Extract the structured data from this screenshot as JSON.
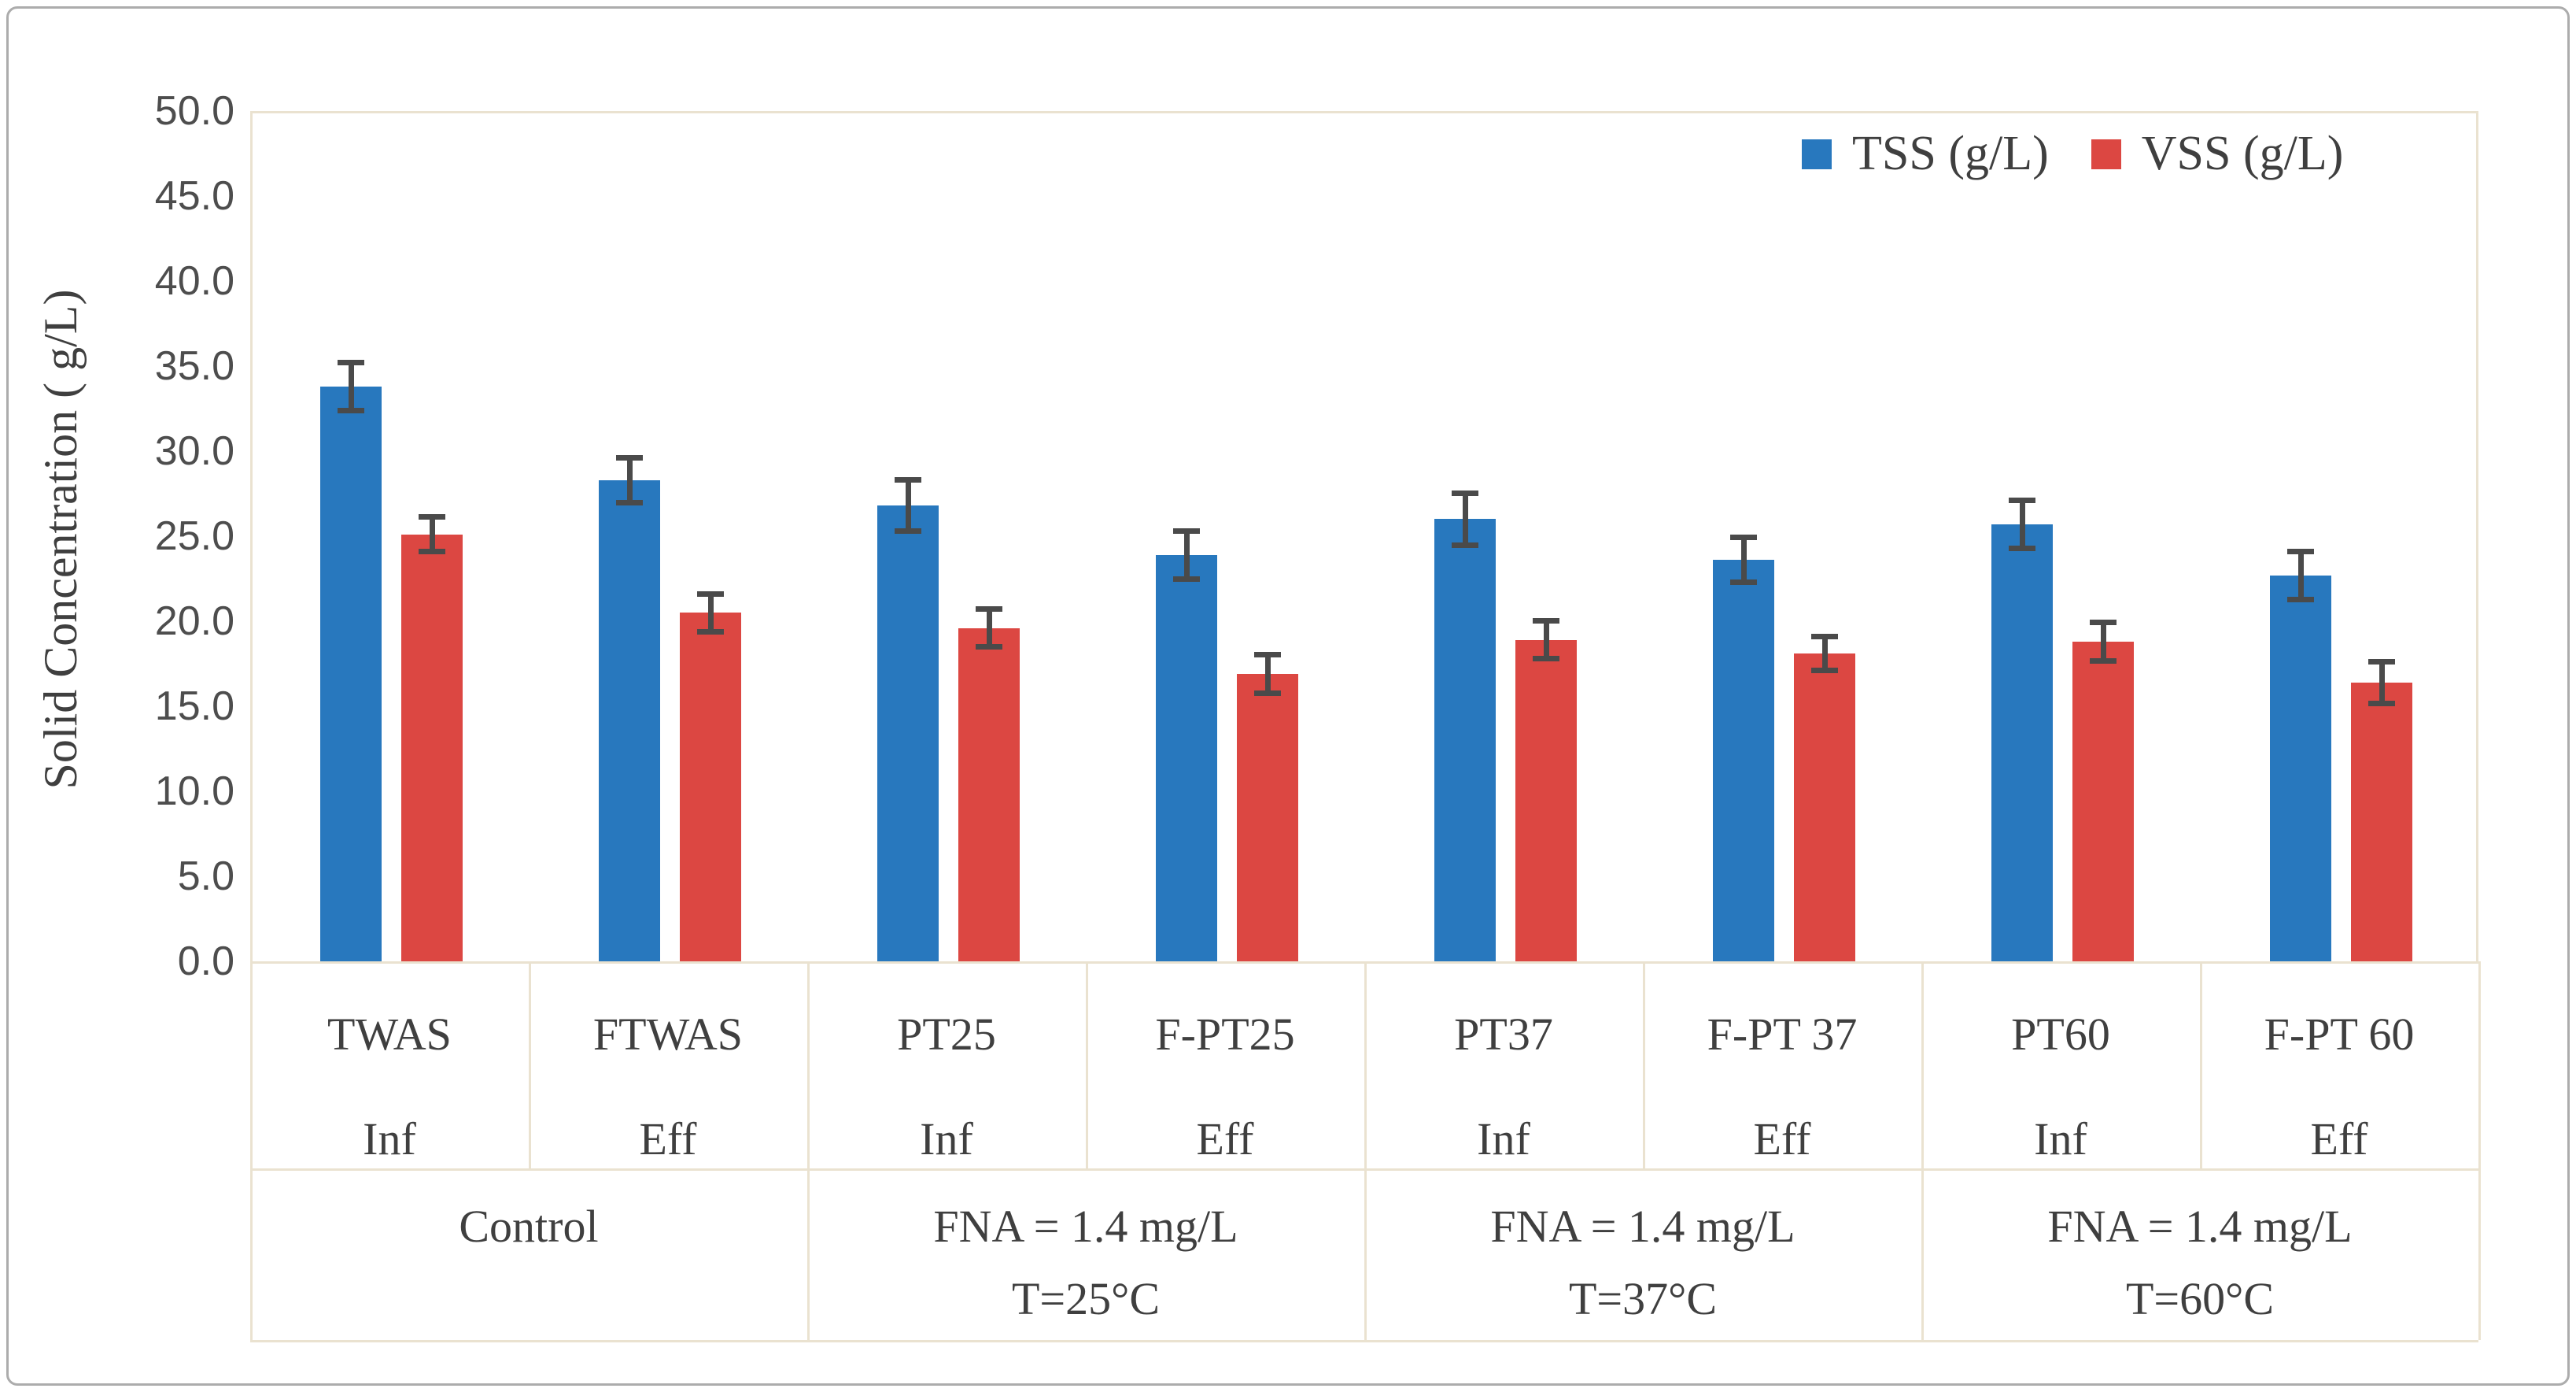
{
  "figure": {
    "border_color": "#acacac",
    "background": "#ffffff",
    "axis_line_color": "#eae2d0",
    "error_bar_color": "#4a4a4a",
    "text_color": "#3f3f3f"
  },
  "y_axis": {
    "title": "Solid Concentration ( g/L)",
    "ticks": [
      "50.0",
      "45.0",
      "40.0",
      "35.0",
      "30.0",
      "25.0",
      "20.0",
      "15.0",
      "10.0",
      "5.0",
      "0.0"
    ],
    "max": 50,
    "min": 0,
    "step": 5
  },
  "chart_data": {
    "type": "bar",
    "title": "",
    "ylabel": "Solid Concentration ( g/L)",
    "ylim": [
      0,
      50
    ],
    "grid": false,
    "legend_position": "top-right-inside",
    "categories": [
      {
        "sample": "TWAS",
        "flow": "Inf"
      },
      {
        "sample": "FTWAS",
        "flow": "Eff"
      },
      {
        "sample": "PT25",
        "flow": "Inf"
      },
      {
        "sample": "F-PT25",
        "flow": "Eff"
      },
      {
        "sample": "PT37",
        "flow": "Inf"
      },
      {
        "sample": "F-PT 37",
        "flow": "Eff"
      },
      {
        "sample": "PT60",
        "flow": "Inf"
      },
      {
        "sample": "F-PT 60",
        "flow": "Eff"
      }
    ],
    "condition_groups": [
      {
        "lines": [
          "Control"
        ],
        "span": 2
      },
      {
        "lines": [
          "FNA = 1.4 mg/L",
          "T=25°C"
        ],
        "span": 2
      },
      {
        "lines": [
          "FNA = 1.4 mg/L",
          "T=37°C"
        ],
        "span": 2
      },
      {
        "lines": [
          "FNA = 1.4 mg/L",
          "T=60°C"
        ],
        "span": 2
      }
    ],
    "series": [
      {
        "name": "TSS (g/L)",
        "color": "#2878be",
        "values": [
          33.8,
          28.3,
          26.8,
          23.9,
          26.0,
          23.6,
          25.7,
          22.7
        ],
        "errors": [
          1.3,
          1.2,
          1.4,
          1.3,
          1.4,
          1.2,
          1.3,
          1.3
        ]
      },
      {
        "name": "VSS (g/L)",
        "color": "#dc4742",
        "values": [
          25.1,
          20.5,
          19.6,
          16.9,
          18.9,
          18.1,
          18.8,
          16.4
        ],
        "errors": [
          0.9,
          1.0,
          1.0,
          1.0,
          1.0,
          0.9,
          1.0,
          1.1
        ]
      }
    ]
  }
}
